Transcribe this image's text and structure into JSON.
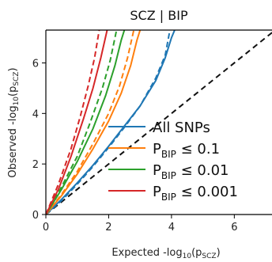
{
  "chart_data": {
    "type": "line",
    "title": "SCZ | BIP",
    "xlabel": "Expected -log10(pSCZ)",
    "ylabel": "Observed -log10(pSCZ)",
    "xlim": [
      0,
      7.2
    ],
    "ylim": [
      0,
      7.3
    ],
    "xticks": [
      0,
      2,
      4,
      6
    ],
    "yticks": [
      0,
      2,
      4,
      6
    ],
    "grid": false,
    "legend_position": "bottom-right",
    "reference_line": {
      "name": "y = x",
      "style": "dashed",
      "color": "#111111"
    },
    "series": [
      {
        "name": "All SNPs",
        "color": "#1f77b4",
        "solid": [
          [
            0,
            0
          ],
          [
            0.5,
            0.6
          ],
          [
            1.0,
            1.25
          ],
          [
            1.5,
            1.95
          ],
          [
            2.0,
            2.7
          ],
          [
            2.5,
            3.5
          ],
          [
            3.0,
            4.3
          ],
          [
            3.5,
            5.3
          ],
          [
            3.8,
            6.2
          ],
          [
            4.0,
            7.0
          ],
          [
            4.1,
            7.3
          ]
        ],
        "dashed": [
          [
            0,
            0
          ],
          [
            0.5,
            0.55
          ],
          [
            1.0,
            1.2
          ],
          [
            1.5,
            1.9
          ],
          [
            2.0,
            2.65
          ],
          [
            2.5,
            3.45
          ],
          [
            3.0,
            4.3
          ],
          [
            3.5,
            5.4
          ],
          [
            3.8,
            6.3
          ],
          [
            3.95,
            7.3
          ]
        ]
      },
      {
        "name": "P_BIP ≤ 0.1",
        "color": "#ff7f0e",
        "solid": [
          [
            0,
            0
          ],
          [
            0.5,
            0.75
          ],
          [
            1.0,
            1.6
          ],
          [
            1.5,
            2.6
          ],
          [
            2.0,
            3.7
          ],
          [
            2.4,
            4.8
          ],
          [
            2.7,
            5.9
          ],
          [
            2.9,
            6.9
          ],
          [
            3.0,
            7.3
          ]
        ],
        "dashed": [
          [
            0,
            0
          ],
          [
            0.5,
            0.8
          ],
          [
            1.0,
            1.7
          ],
          [
            1.5,
            2.8
          ],
          [
            2.0,
            4.0
          ],
          [
            2.35,
            5.1
          ],
          [
            2.6,
            6.2
          ],
          [
            2.8,
            7.3
          ]
        ]
      },
      {
        "name": "P_BIP ≤ 0.01",
        "color": "#2ca02c",
        "solid": [
          [
            0,
            0
          ],
          [
            0.5,
            1.0
          ],
          [
            1.0,
            2.1
          ],
          [
            1.5,
            3.4
          ],
          [
            1.9,
            4.7
          ],
          [
            2.2,
            5.9
          ],
          [
            2.4,
            6.9
          ],
          [
            2.5,
            7.3
          ]
        ],
        "dashed": [
          [
            0,
            0
          ],
          [
            0.5,
            1.1
          ],
          [
            1.0,
            2.3
          ],
          [
            1.4,
            3.6
          ],
          [
            1.8,
            5.0
          ],
          [
            2.05,
            6.1
          ],
          [
            2.25,
            7.3
          ]
        ]
      },
      {
        "name": "P_BIP ≤ 0.001",
        "color": "#d62728",
        "solid": [
          [
            0,
            0
          ],
          [
            0.4,
            1.0
          ],
          [
            0.8,
            2.3
          ],
          [
            1.2,
            3.8
          ],
          [
            1.5,
            5.0
          ],
          [
            1.75,
            6.2
          ],
          [
            1.95,
            7.3
          ]
        ],
        "dashed": [
          [
            0,
            0
          ],
          [
            0.4,
            1.2
          ],
          [
            0.8,
            2.6
          ],
          [
            1.1,
            3.9
          ],
          [
            1.35,
            5.1
          ],
          [
            1.55,
            6.2
          ],
          [
            1.7,
            7.3
          ]
        ]
      }
    ],
    "legend": [
      {
        "main": "All SNPs",
        "sub": "",
        "tail": "",
        "color": "#1f77b4"
      },
      {
        "main": "P",
        "sub": "BIP",
        "tail": " ≤ 0.1",
        "color": "#ff7f0e"
      },
      {
        "main": "P",
        "sub": "BIP",
        "tail": " ≤ 0.01",
        "color": "#2ca02c"
      },
      {
        "main": "P",
        "sub": "BIP",
        "tail": " ≤ 0.001",
        "color": "#d62728"
      }
    ]
  }
}
